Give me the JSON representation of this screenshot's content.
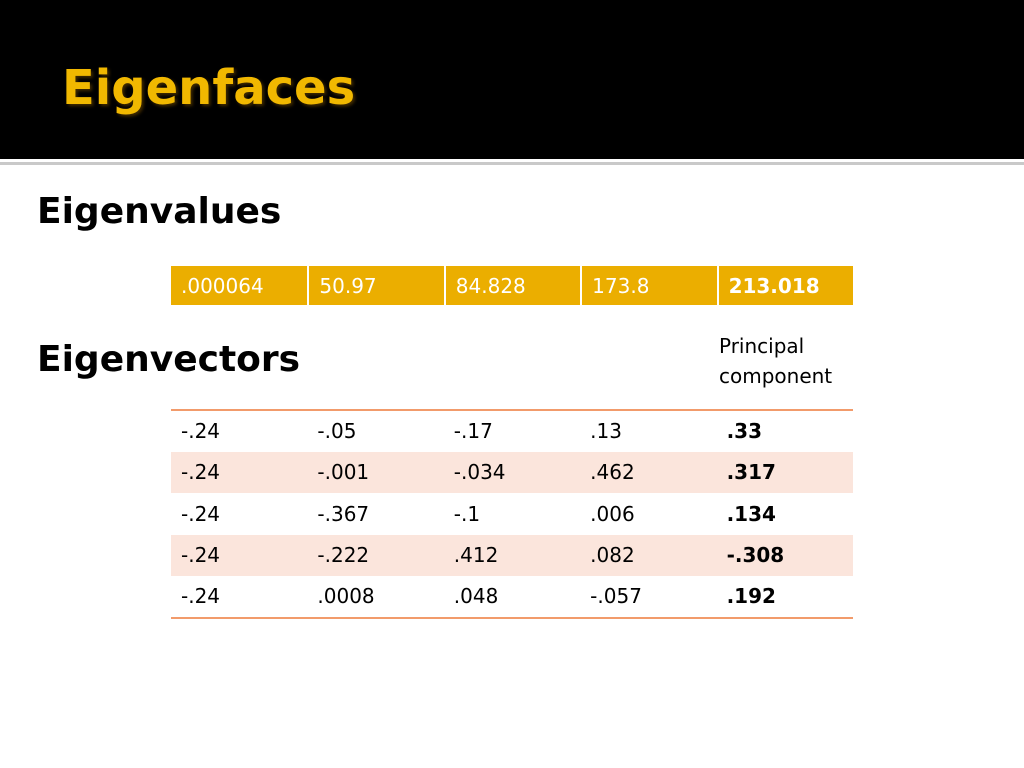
{
  "slide": {
    "title": "Eigenfaces",
    "colors": {
      "title_background": "#000000",
      "title_text": "#f1b800",
      "eigenvalue_band": "#ebae00",
      "table_rule": "#f29b6b",
      "row_shade": "#fbe5dc"
    }
  },
  "eigenvalues": {
    "heading": "Eigenvalues",
    "values": [
      ".000064",
      "50.97",
      "84.828",
      "173.8",
      "213.018"
    ],
    "highlighted_index": 4
  },
  "eigenvectors": {
    "heading": "Eigenvectors",
    "principal_label_line1": "Principal",
    "principal_label_line2": "component",
    "rows": [
      [
        "-.24",
        "-.05",
        "-.17",
        ".13",
        ".33"
      ],
      [
        "-.24",
        "-.001",
        "-.034",
        ".462",
        ".317"
      ],
      [
        "-.24",
        "-.367",
        "-.1",
        ".006",
        ".134"
      ],
      [
        "-.24",
        "-.222",
        ".412",
        ".082",
        "-.308"
      ],
      [
        "-.24",
        ".0008",
        ".048",
        "-.057",
        ".192"
      ]
    ]
  }
}
